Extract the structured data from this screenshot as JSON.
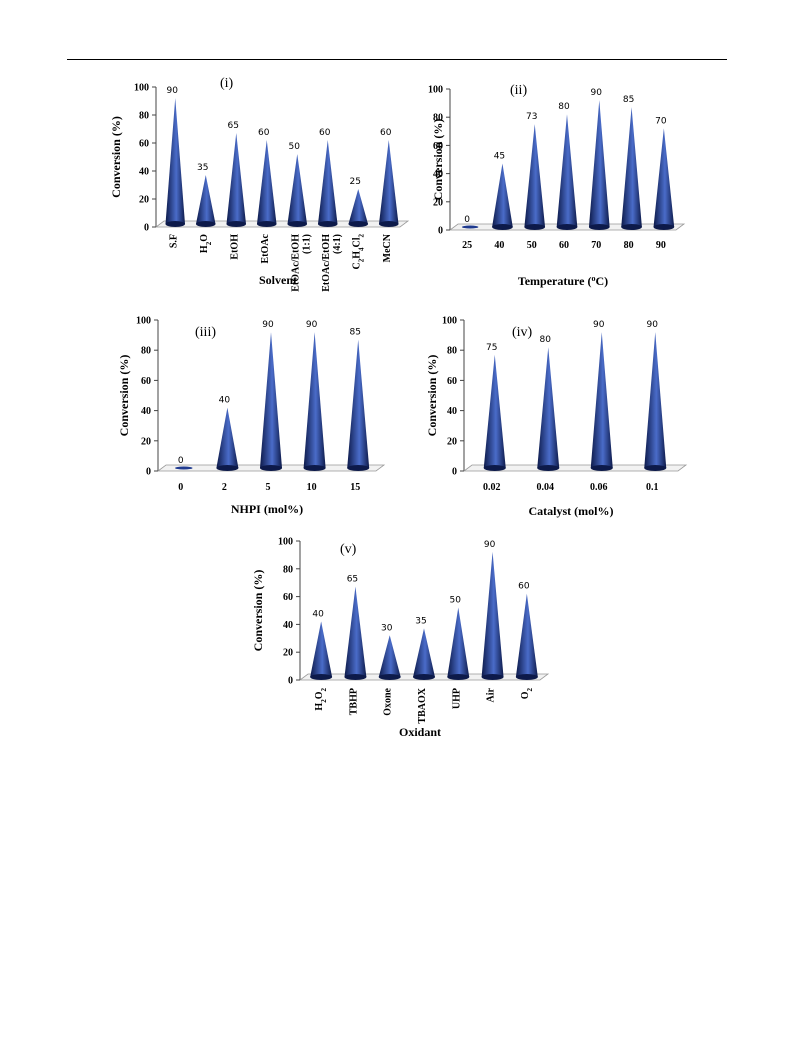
{
  "colors": {
    "cone_dark": "#0d1a4a",
    "cone_mid": "#1f3a8f",
    "cone_light": "#4a6cc9",
    "floor": "#cccccc"
  },
  "chart_data": [
    {
      "type": "bar",
      "shape": "cone",
      "panel_label": "(i)",
      "xlabel": "Solvent",
      "ylabel": "Conversion (%)",
      "ylim": [
        0,
        100
      ],
      "yticks": [
        "0",
        "20",
        "40",
        "60",
        "80",
        "100"
      ],
      "x_label_rotation": "vertical",
      "categories": [
        {
          "pre": "S.F",
          "sub": "",
          "post": "",
          "sub2": "",
          "post2": "",
          "line2": ""
        },
        {
          "pre": "H",
          "sub": "2",
          "post": "O",
          "sub2": "",
          "post2": "",
          "line2": ""
        },
        {
          "pre": "EtOH",
          "sub": "",
          "post": "",
          "sub2": "",
          "post2": "",
          "line2": ""
        },
        {
          "pre": "EtOAc",
          "sub": "",
          "post": "",
          "sub2": "",
          "post2": "",
          "line2": ""
        },
        {
          "pre": "EtOAc/EtOH",
          "sub": "",
          "post": "",
          "sub2": "",
          "post2": "",
          "line2": "(1:1)"
        },
        {
          "pre": "EtOAc/EtOH",
          "sub": "",
          "post": "",
          "sub2": "",
          "post2": "",
          "line2": "(4:1)"
        },
        {
          "pre": "C",
          "sub": "2",
          "post": "H",
          "sub2": "4",
          "post2": "Cl",
          "sub3": "2",
          "line2": ""
        },
        {
          "pre": "MeCN",
          "sub": "",
          "post": "",
          "sub2": "",
          "post2": "",
          "line2": ""
        }
      ],
      "values": [
        90,
        35,
        65,
        60,
        50,
        60,
        25,
        60
      ],
      "value_labels": [
        "90",
        "35",
        "65",
        "60",
        "50",
        "60",
        "25",
        "60"
      ]
    },
    {
      "type": "bar",
      "shape": "cone",
      "panel_label": "(ii)",
      "xlabel_pre": "Temperature (",
      "xlabel_sup": "o",
      "xlabel_post": "C)",
      "ylabel": "Conversion (%)",
      "ylim": [
        0,
        100
      ],
      "yticks": [
        "0",
        "20",
        "40",
        "60",
        "80",
        "100"
      ],
      "x_label_rotation": "horizontal",
      "categories": [
        "25",
        "40",
        "50",
        "60",
        "70",
        "80",
        "90"
      ],
      "values": [
        0,
        45,
        73,
        80,
        90,
        85,
        70
      ],
      "value_labels": [
        "0",
        "45",
        "73",
        "80",
        "90",
        "85",
        "70"
      ]
    },
    {
      "type": "bar",
      "shape": "cone",
      "panel_label": "(iii)",
      "xlabel": "NHPI (mol%)",
      "ylabel": "Conversion (%)",
      "ylim": [
        0,
        100
      ],
      "yticks": [
        "0",
        "20",
        "40",
        "60",
        "80",
        "100"
      ],
      "x_label_rotation": "horizontal",
      "categories": [
        "0",
        "2",
        "5",
        "10",
        "15"
      ],
      "values": [
        0,
        40,
        90,
        90,
        85
      ],
      "value_labels": [
        "0",
        "40",
        "90",
        "90",
        "85"
      ]
    },
    {
      "type": "bar",
      "shape": "cone",
      "panel_label": "(iv)",
      "xlabel": "Catalyst (mol%)",
      "ylabel": "Conversion (%)",
      "ylim": [
        0,
        100
      ],
      "yticks": [
        "0",
        "20",
        "40",
        "60",
        "80",
        "100"
      ],
      "x_label_rotation": "horizontal",
      "categories": [
        "0.02",
        "0.04",
        "0.06",
        "0.1"
      ],
      "values": [
        75,
        80,
        90,
        90
      ],
      "value_labels": [
        "75",
        "80",
        "90",
        "90"
      ]
    },
    {
      "type": "bar",
      "shape": "cone",
      "panel_label": "(v)",
      "xlabel": "Oxidant",
      "ylabel": "Conversion (%)",
      "ylim": [
        0,
        100
      ],
      "yticks": [
        "0",
        "20",
        "40",
        "60",
        "80",
        "100"
      ],
      "x_label_rotation": "vertical",
      "categories": [
        {
          "pre": "H",
          "sub": "2",
          "post": "O",
          "sub2": "2",
          "post2": "",
          "line2": ""
        },
        {
          "pre": "TBHP",
          "sub": "",
          "post": "",
          "sub2": "",
          "post2": "",
          "line2": ""
        },
        {
          "pre": "Oxone",
          "sub": "",
          "post": "",
          "sub2": "",
          "post2": "",
          "line2": ""
        },
        {
          "pre": "TBAOX",
          "sub": "",
          "post": "",
          "sub2": "",
          "post2": "",
          "line2": ""
        },
        {
          "pre": "UHP",
          "sub": "",
          "post": "",
          "sub2": "",
          "post2": "",
          "line2": ""
        },
        {
          "pre": "Air",
          "sub": "",
          "post": "",
          "sub2": "",
          "post2": "",
          "line2": ""
        },
        {
          "pre": "O",
          "sub": "2",
          "post": "",
          "sub2": "",
          "post2": "",
          "line2": ""
        }
      ],
      "values": [
        40,
        65,
        30,
        35,
        50,
        90,
        60
      ],
      "value_labels": [
        "40",
        "65",
        "30",
        "35",
        "50",
        "90",
        "60"
      ]
    }
  ]
}
